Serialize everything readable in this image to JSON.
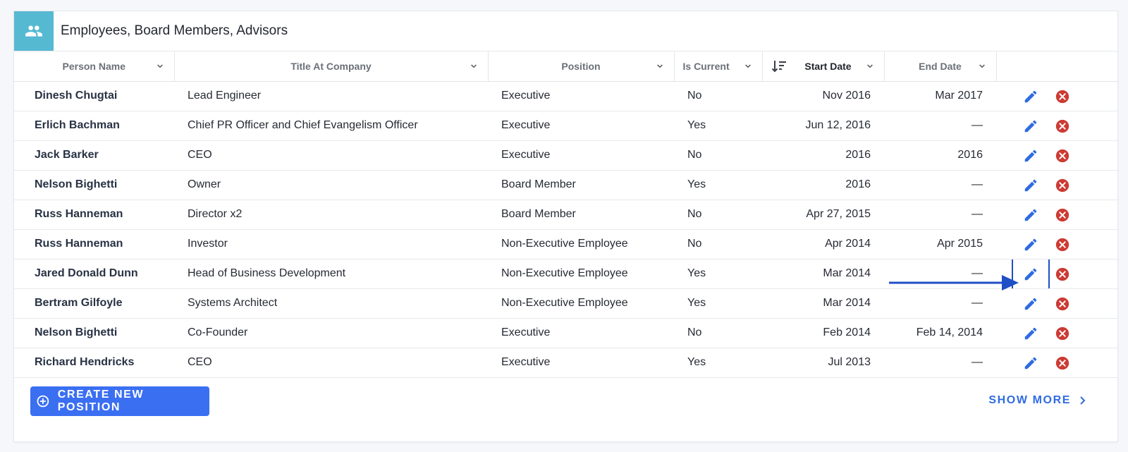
{
  "card": {
    "title": "Employees, Board Members, Advisors",
    "icon": "people-icon",
    "icon_bg": "#56b9d2"
  },
  "table": {
    "columns": [
      {
        "key": "person_name",
        "label": "Person Name"
      },
      {
        "key": "title",
        "label": "Title At Company"
      },
      {
        "key": "position",
        "label": "Position"
      },
      {
        "key": "is_current",
        "label": "Is Current"
      },
      {
        "key": "start_date",
        "label": "Start Date",
        "sorted": "desc"
      },
      {
        "key": "end_date",
        "label": "End Date"
      }
    ],
    "rows": [
      {
        "person_name": "Dinesh Chugtai",
        "title": "Lead Engineer",
        "position": "Executive",
        "is_current": "No",
        "start_date": "Nov 2016",
        "end_date": "Mar 2017"
      },
      {
        "person_name": "Erlich Bachman",
        "title": "Chief PR Officer and Chief Evangelism Officer",
        "position": "Executive",
        "is_current": "Yes",
        "start_date": "Jun 12, 2016",
        "end_date": "—"
      },
      {
        "person_name": "Jack Barker",
        "title": "CEO",
        "position": "Executive",
        "is_current": "No",
        "start_date": "2016",
        "end_date": "2016"
      },
      {
        "person_name": "Nelson Bighetti",
        "title": "Owner",
        "position": "Board Member",
        "is_current": "Yes",
        "start_date": "2016",
        "end_date": "—"
      },
      {
        "person_name": "Russ Hanneman",
        "title": "Director x2",
        "position": "Board Member",
        "is_current": "No",
        "start_date": "Apr 27, 2015",
        "end_date": "—"
      },
      {
        "person_name": "Russ Hanneman",
        "title": "Investor",
        "position": "Non-Executive Employee",
        "is_current": "No",
        "start_date": "Apr 2014",
        "end_date": "Apr 2015"
      },
      {
        "person_name": "Jared Donald Dunn",
        "title": "Head of Business Development",
        "position": "Non-Executive Employee",
        "is_current": "Yes",
        "start_date": "Mar 2014",
        "end_date": "—"
      },
      {
        "person_name": "Bertram Gilfoyle",
        "title": "Systems Architect",
        "position": "Non-Executive Employee",
        "is_current": "Yes",
        "start_date": "Mar 2014",
        "end_date": "—"
      },
      {
        "person_name": "Nelson Bighetti",
        "title": "Co-Founder",
        "position": "Executive",
        "is_current": "No",
        "start_date": "Feb 2014",
        "end_date": "Feb 14, 2014"
      },
      {
        "person_name": "Richard Hendricks",
        "title": "CEO",
        "position": "Executive",
        "is_current": "Yes",
        "start_date": "Jul 2013",
        "end_date": "—"
      }
    ],
    "row_actions": {
      "edit_icon": "pencil-icon",
      "delete_icon": "close-circle-icon"
    },
    "highlighted_row": 6
  },
  "footer": {
    "create_label": "CREATE NEW POSITION",
    "show_more_label": "SHOW MORE"
  },
  "colors": {
    "accent": "#3b6ff2",
    "edit": "#2f6be0",
    "delete": "#cc3b34",
    "annotation": "#1f4fc6"
  }
}
